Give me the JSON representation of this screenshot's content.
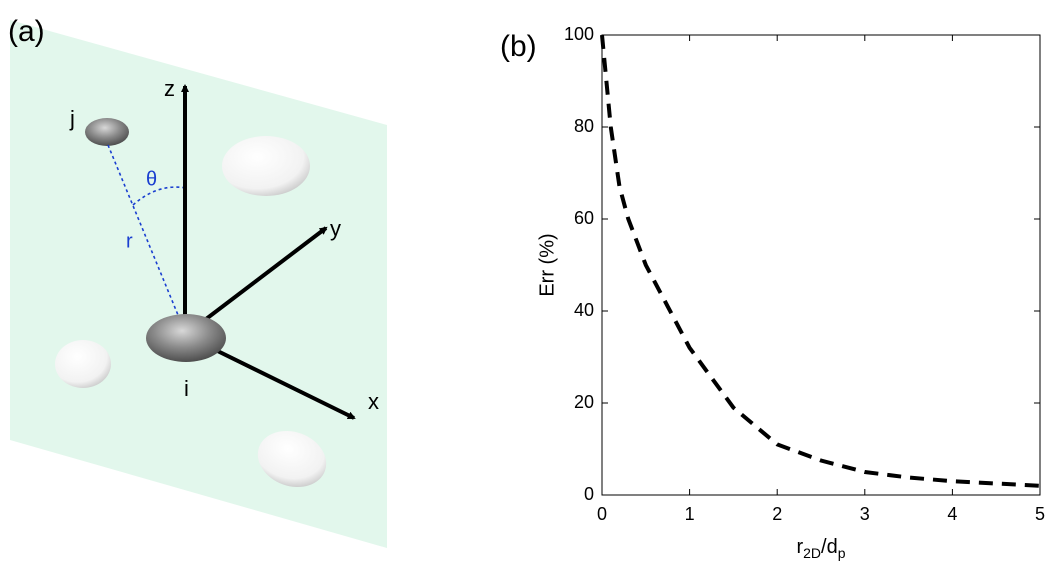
{
  "panel_a": {
    "label": "(a)",
    "axes": [
      "x",
      "y",
      "z"
    ],
    "particles": [
      "i",
      "j"
    ],
    "angle": "θ",
    "distance": "r"
  },
  "chart_data": {
    "type": "line",
    "label": "(b)",
    "ylabel": "Err (%)",
    "xlabel": [
      "r",
      "2D",
      "/d",
      "p"
    ],
    "x": [
      0,
      0.1,
      0.2,
      0.3,
      0.5,
      0.75,
      1,
      1.5,
      2,
      2.5,
      3,
      3.5,
      4,
      4.5,
      5
    ],
    "series": [
      {
        "color": "#000000",
        "values": [
          100,
          80,
          67,
          60,
          50,
          41,
          32,
          19,
          11,
          7.5,
          5,
          3.8,
          3,
          2.5,
          2
        ]
      }
    ],
    "xlim": [
      0,
      5
    ],
    "ylim": [
      0,
      100
    ],
    "xticks": [
      0,
      1,
      2,
      3,
      4,
      5
    ],
    "yticks": [
      0,
      20,
      40,
      60,
      80,
      100
    ]
  }
}
